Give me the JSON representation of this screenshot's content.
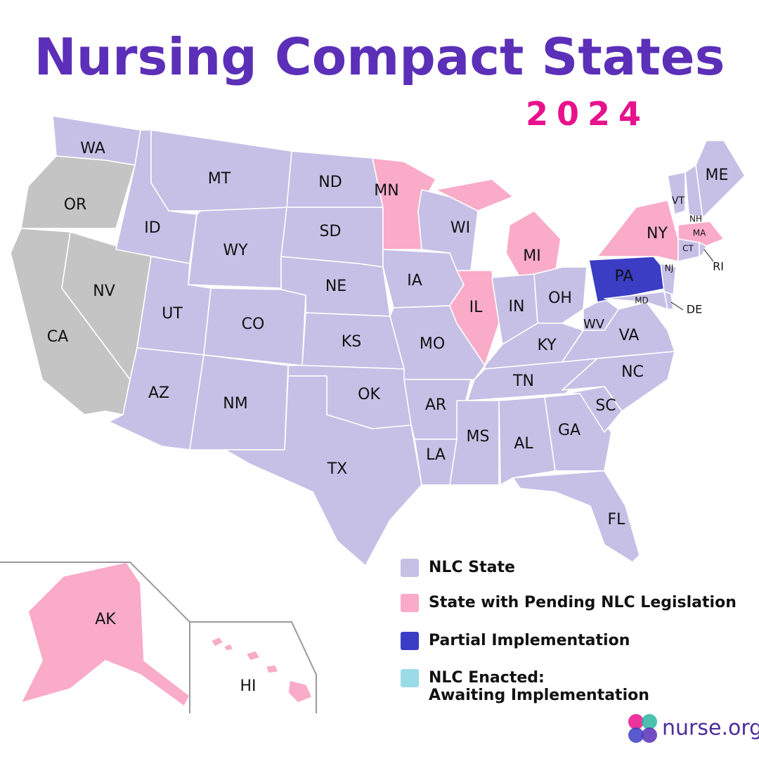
{
  "header": {
    "title": "Nursing Compact States",
    "year": "2024"
  },
  "legend": [
    {
      "label": "NLC State",
      "color": "#c6c0e6"
    },
    {
      "label": "State with Pending NLC Legislation",
      "color": "#f9abc8"
    },
    {
      "label": "Partial Implementation",
      "color": "#3b3dc4"
    },
    {
      "label": "NLC Enacted: Awaiting Implementation",
      "color": "#9bdbe8"
    }
  ],
  "states": [
    {
      "label": "WA",
      "status": 0
    },
    {
      "label": "OR",
      "status": null
    },
    {
      "label": "CA",
      "status": null
    },
    {
      "label": "NV",
      "status": null
    },
    {
      "label": "ID",
      "status": 0
    },
    {
      "label": "MT",
      "status": 0
    },
    {
      "label": "WY",
      "status": 0
    },
    {
      "label": "UT",
      "status": 0
    },
    {
      "label": "CO",
      "status": 0
    },
    {
      "label": "AZ",
      "status": 0
    },
    {
      "label": "NM",
      "status": 0
    },
    {
      "label": "ND",
      "status": 0
    },
    {
      "label": "SD",
      "status": 0
    },
    {
      "label": "NE",
      "status": 0
    },
    {
      "label": "KS",
      "status": 0
    },
    {
      "label": "OK",
      "status": 0
    },
    {
      "label": "TX",
      "status": 0
    },
    {
      "label": "MN",
      "status": 1
    },
    {
      "label": "IA",
      "status": 0
    },
    {
      "label": "MO",
      "status": 0
    },
    {
      "label": "AR",
      "status": 0
    },
    {
      "label": "LA",
      "status": 0
    },
    {
      "label": "WI",
      "status": 0
    },
    {
      "label": "IL",
      "status": 1
    },
    {
      "label": "MI",
      "status": 1
    },
    {
      "label": "IN",
      "status": 0
    },
    {
      "label": "OH",
      "status": 0
    },
    {
      "label": "KY",
      "status": 0
    },
    {
      "label": "TN",
      "status": 0
    },
    {
      "label": "MS",
      "status": 0
    },
    {
      "label": "AL",
      "status": 0
    },
    {
      "label": "GA",
      "status": 0
    },
    {
      "label": "FL",
      "status": 0
    },
    {
      "label": "SC",
      "status": 0
    },
    {
      "label": "NC",
      "status": 0
    },
    {
      "label": "VA",
      "status": 0
    },
    {
      "label": "WV",
      "status": 0
    },
    {
      "label": "PA",
      "status": 2
    },
    {
      "label": "NY",
      "status": 1
    },
    {
      "label": "NJ",
      "status": 0
    },
    {
      "label": "MD",
      "status": 0
    },
    {
      "label": "DE",
      "status": 0
    },
    {
      "label": "VT",
      "status": 0
    },
    {
      "label": "NH",
      "status": 0
    },
    {
      "label": "ME",
      "status": 0
    },
    {
      "label": "MA",
      "status": 1
    },
    {
      "label": "CT",
      "status": 0
    },
    {
      "label": "RI",
      "status": 0
    },
    {
      "label": "AK",
      "status": 1
    },
    {
      "label": "HI",
      "status": 1
    }
  ],
  "brand": "nurse.org"
}
